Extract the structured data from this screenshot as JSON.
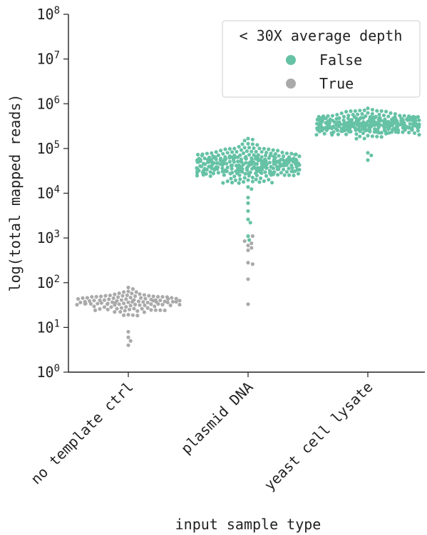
{
  "chart_data": {
    "type": "swarm",
    "xlabel": "input sample type",
    "ylabel": "log(total mapped reads)",
    "ylog": true,
    "ylim": [
      1,
      100000000
    ],
    "y_ticks": [
      {
        "value": 1,
        "base": "10",
        "exp": "0"
      },
      {
        "value": 10,
        "base": "10",
        "exp": "1"
      },
      {
        "value": 100,
        "base": "10",
        "exp": "2"
      },
      {
        "value": 1000,
        "base": "10",
        "exp": "3"
      },
      {
        "value": 10000,
        "base": "10",
        "exp": "4"
      },
      {
        "value": 100000,
        "base": "10",
        "exp": "5"
      },
      {
        "value": 1000000,
        "base": "10",
        "exp": "6"
      },
      {
        "value": 10000000,
        "base": "10",
        "exp": "7"
      },
      {
        "value": 100000000,
        "base": "10",
        "exp": "8"
      }
    ],
    "categories": [
      "no template ctrl",
      "plasmid DNA",
      "yeast cell lysate"
    ],
    "legend": {
      "title": "< 30X average depth",
      "placement": "top-right",
      "entries": [
        {
          "label": "False",
          "color": "#66c2a5"
        },
        {
          "label": "True",
          "color": "#aaaaaa"
        }
      ]
    },
    "series": [
      {
        "category": "no template ctrl",
        "groups": [
          {
            "hue": "True",
            "color": "#aaaaaa",
            "n": 110,
            "log_center": 1.55,
            "log_sd": 0.2,
            "extra": [
              4,
              5,
              6,
              8
            ]
          }
        ]
      },
      {
        "category": "plasmid DNA",
        "groups": [
          {
            "hue": "False",
            "color": "#66c2a5",
            "n": 330,
            "log_center": 4.65,
            "log_sd": 0.27,
            "extra": [
              4000,
              6000,
              8000,
              2600,
              2200,
              1100,
              900
            ]
          },
          {
            "hue": "True",
            "color": "#aaaaaa",
            "n": 0,
            "log_center": 2.8,
            "log_sd": 0.3,
            "extra": [
              1100,
              850,
              760,
              680,
              600,
              530,
              280,
              260,
              120,
              33
            ]
          }
        ]
      },
      {
        "category": "yeast cell lysate",
        "groups": [
          {
            "hue": "False",
            "color": "#66c2a5",
            "n": 330,
            "log_center": 5.55,
            "log_sd": 0.18,
            "extra": [
              55000,
              70000,
              80000
            ]
          }
        ]
      }
    ]
  }
}
